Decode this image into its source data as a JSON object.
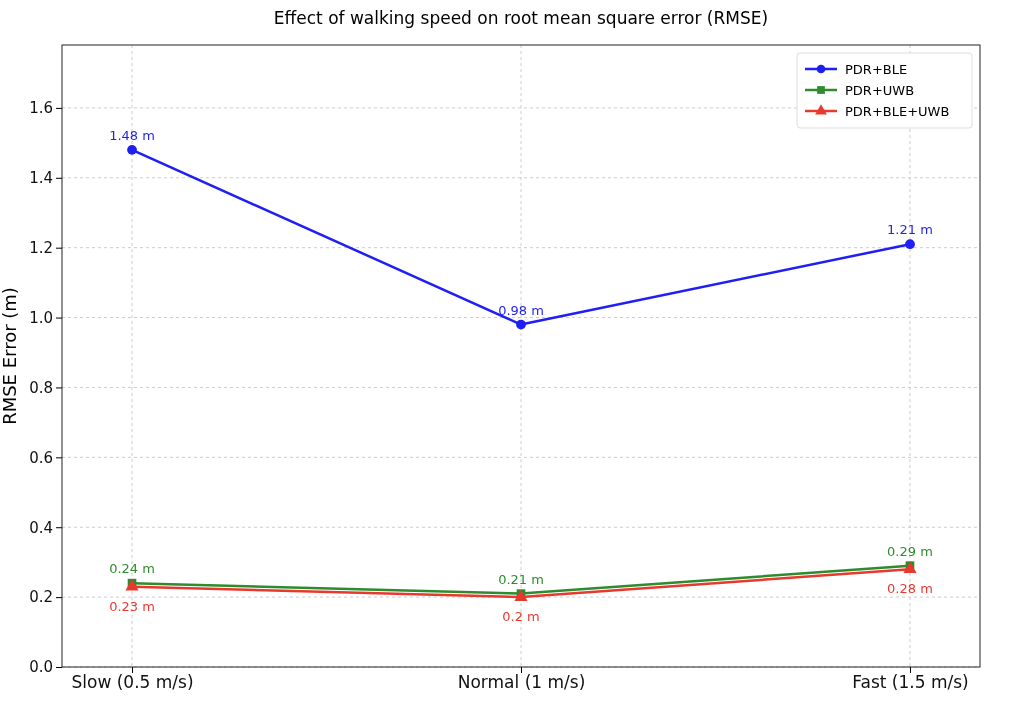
{
  "chart_data": {
    "type": "line",
    "title": "Effect of walking speed on root mean square error (RMSE)",
    "ylabel": "RMSE Error (m)",
    "categories": [
      "Slow (0.5 m/s)",
      "Normal (1 m/s)",
      "Fast (1.5 m/s)"
    ],
    "series": [
      {
        "name": "PDR+BLE",
        "color": "#1f1ff5",
        "marker": "circle",
        "values": [
          1.48,
          0.98,
          1.21
        ],
        "value_labels": [
          "1.48 m",
          "0.98 m",
          "1.21 m"
        ]
      },
      {
        "name": "PDR+UWB",
        "color": "#2e8b2e",
        "marker": "square",
        "values": [
          0.24,
          0.21,
          0.29
        ],
        "value_labels": [
          "0.24 m",
          "0.21 m",
          "0.29 m"
        ]
      },
      {
        "name": "PDR+BLE+UWB",
        "color": "#e8392f",
        "marker": "triangle",
        "values": [
          0.23,
          0.2,
          0.28
        ],
        "value_labels": [
          "0.23 m",
          "0.2 m",
          "0.28 m"
        ]
      }
    ],
    "ylim": [
      0,
      1.78
    ],
    "yticks": [
      {
        "value": 0,
        "label": "0.0"
      },
      0.2,
      0.4,
      0.6,
      0.8,
      {
        "value": 1,
        "label": "1.0"
      },
      1.2,
      1.4,
      1.6
    ],
    "grid": true,
    "legend": "top right"
  }
}
